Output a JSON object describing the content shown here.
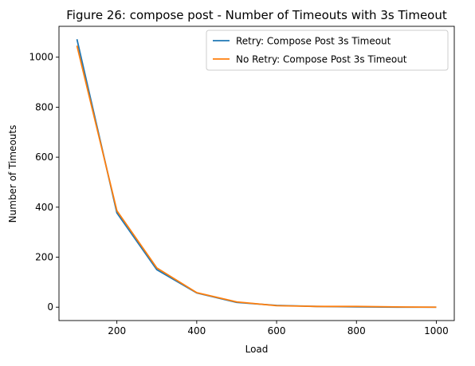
{
  "chart_data": {
    "type": "line",
    "title": "Figure 26: compose post - Number of Timeouts with 3s Timeout",
    "xlabel": "Load",
    "ylabel": "Number of Timeouts",
    "xlim": [
      55,
      1045
    ],
    "ylim": [
      -53.5,
      1123.5
    ],
    "x_ticks": [
      200,
      400,
      600,
      800,
      1000
    ],
    "y_ticks": [
      0,
      200,
      400,
      600,
      800,
      1000
    ],
    "grid": false,
    "legend_position": "upper right",
    "x": [
      100,
      200,
      300,
      400,
      500,
      600,
      700,
      800,
      900,
      1000
    ],
    "series": [
      {
        "name": "Retry: Compose Post 3s Timeout",
        "color": "#1f77b4",
        "values": [
          1072,
          377,
          150,
          57,
          19,
          7,
          3,
          1,
          0,
          0
        ]
      },
      {
        "name": "No Retry: Compose Post 3s Timeout",
        "color": "#ff7f0e",
        "values": [
          1046,
          386,
          157,
          58,
          21,
          6,
          3,
          3,
          1,
          0
        ]
      }
    ]
  }
}
